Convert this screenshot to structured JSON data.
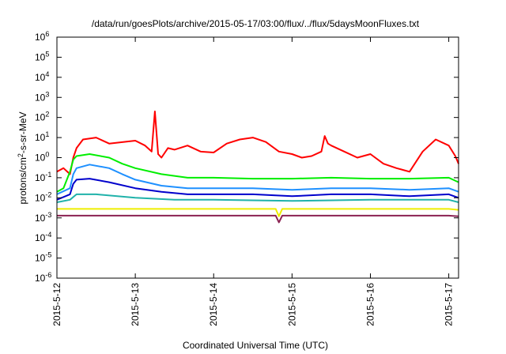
{
  "chart_data": {
    "type": "line",
    "title": "/data/run/goesPlots/archive/2015-05-17/03:00/flux/../flux/5daysMoonFluxes.txt",
    "xlabel": "Coordinated Universal Time (UTC)",
    "ylabel": "protons/cm2-s-sr-MeV",
    "ylabel_parts": {
      "pre": "protons/cm",
      "sup": "2",
      "post": "-s-sr-MeV"
    },
    "y_scale": "log",
    "ylim": [
      "1e-6",
      "1e6"
    ],
    "y_ticks": [
      {
        "value": "1e-6",
        "base": "10",
        "exp": "-6"
      },
      {
        "value": "1e-5",
        "base": "10",
        "exp": "-5"
      },
      {
        "value": "1e-4",
        "base": "10",
        "exp": "-4"
      },
      {
        "value": "1e-3",
        "base": "10",
        "exp": "-3"
      },
      {
        "value": "1e-2",
        "base": "10",
        "exp": "-2"
      },
      {
        "value": "1e-1",
        "base": "10",
        "exp": "-1"
      },
      {
        "value": "1e0",
        "base": "10",
        "exp": "0"
      },
      {
        "value": "1e1",
        "base": "10",
        "exp": "1"
      },
      {
        "value": "1e2",
        "base": "10",
        "exp": "2"
      },
      {
        "value": "1e3",
        "base": "10",
        "exp": "3"
      },
      {
        "value": "1e4",
        "base": "10",
        "exp": "4"
      },
      {
        "value": "1e5",
        "base": "10",
        "exp": "5"
      },
      {
        "value": "1e6",
        "base": "10",
        "exp": "6"
      }
    ],
    "xlim": [
      "2015-05-12T00:00",
      "2015-05-17T03:00"
    ],
    "x_ticks": [
      "2015-5-12",
      "2015-5-13",
      "2015-5-14",
      "2015-5-15",
      "2015-5-16",
      "2015-5-17"
    ],
    "grid": false,
    "legend": "none",
    "series": [
      {
        "color": "#ff0000",
        "x": [
          "2015-05-12T00:00",
          "2015-05-12T02:00",
          "2015-05-12T04:00",
          "2015-05-12T05:00",
          "2015-05-12T06:00",
          "2015-05-12T08:00",
          "2015-05-12T12:00",
          "2015-05-12T16:00",
          "2015-05-13T00:00",
          "2015-05-13T03:00",
          "2015-05-13T05:00",
          "2015-05-13T06:00",
          "2015-05-13T07:00",
          "2015-05-13T08:00",
          "2015-05-13T10:00",
          "2015-05-13T12:00",
          "2015-05-13T16:00",
          "2015-05-13T20:00",
          "2015-05-14T00:00",
          "2015-05-14T04:00",
          "2015-05-14T08:00",
          "2015-05-14T12:00",
          "2015-05-14T16:00",
          "2015-05-14T20:00",
          "2015-05-15T00:00",
          "2015-05-15T03:00",
          "2015-05-15T06:00",
          "2015-05-15T09:00",
          "2015-05-15T10:00",
          "2015-05-15T11:00",
          "2015-05-15T12:00",
          "2015-05-15T16:00",
          "2015-05-15T20:00",
          "2015-05-16T00:00",
          "2015-05-16T04:00",
          "2015-05-16T08:00",
          "2015-05-16T12:00",
          "2015-05-16T16:00",
          "2015-05-16T20:00",
          "2015-05-17T00:00",
          "2015-05-17T02:00",
          "2015-05-17T03:00"
        ],
        "y": [
          "0.2",
          "0.3",
          "0.15",
          "1",
          "3",
          "8",
          "10",
          "5",
          "7",
          "4",
          "2",
          "200",
          "1.5",
          "1",
          "3",
          "2.5",
          "4",
          "2",
          "1.8",
          "5",
          "8",
          "10",
          "6",
          "2",
          "1.5",
          "1",
          "1.2",
          "2",
          "12",
          "5",
          "4",
          "2",
          "1",
          "1.5",
          "0.5",
          "0.3",
          "0.2",
          "2",
          "8",
          "4",
          "1.2",
          "0.5"
        ]
      },
      {
        "color": "#00ee00",
        "x": [
          "2015-05-12T00:00",
          "2015-05-12T02:00",
          "2015-05-12T04:00",
          "2015-05-12T05:00",
          "2015-05-12T06:00",
          "2015-05-12T10:00",
          "2015-05-12T16:00",
          "2015-05-12T20:00",
          "2015-05-13T00:00",
          "2015-05-13T08:00",
          "2015-05-13T16:00",
          "2015-05-14T00:00",
          "2015-05-14T12:00",
          "2015-05-15T00:00",
          "2015-05-15T12:00",
          "2015-05-16T00:00",
          "2015-05-16T12:00",
          "2015-05-17T00:00",
          "2015-05-17T03:00"
        ],
        "y": [
          "0.02",
          "0.03",
          "0.2",
          "0.8",
          "1.2",
          "1.5",
          "1",
          "0.5",
          "0.3",
          "0.15",
          "0.1",
          "0.1",
          "0.09",
          "0.09",
          "0.1",
          "0.09",
          "0.09",
          "0.1",
          "0.06"
        ]
      },
      {
        "color": "#1e90ff",
        "x": [
          "2015-05-12T00:00",
          "2015-05-12T04:00",
          "2015-05-12T05:00",
          "2015-05-12T06:00",
          "2015-05-12T10:00",
          "2015-05-12T16:00",
          "2015-05-12T20:00",
          "2015-05-13T00:00",
          "2015-05-13T08:00",
          "2015-05-13T16:00",
          "2015-05-14T00:00",
          "2015-05-14T12:00",
          "2015-05-15T00:00",
          "2015-05-15T12:00",
          "2015-05-16T00:00",
          "2015-05-16T12:00",
          "2015-05-17T00:00",
          "2015-05-17T03:00"
        ],
        "y": [
          "0.015",
          "0.03",
          "0.15",
          "0.3",
          "0.45",
          "0.3",
          "0.15",
          "0.08",
          "0.04",
          "0.03",
          "0.03",
          "0.03",
          "0.025",
          "0.03",
          "0.03",
          "0.025",
          "0.03",
          "0.02"
        ]
      },
      {
        "color": "#0000cc",
        "x": [
          "2015-05-12T00:00",
          "2015-05-12T04:00",
          "2015-05-12T05:00",
          "2015-05-12T06:00",
          "2015-05-12T10:00",
          "2015-05-12T16:00",
          "2015-05-13T00:00",
          "2015-05-13T08:00",
          "2015-05-13T16:00",
          "2015-05-14T00:00",
          "2015-05-14T12:00",
          "2015-05-15T00:00",
          "2015-05-15T12:00",
          "2015-05-16T00:00",
          "2015-05-16T12:00",
          "2015-05-17T00:00",
          "2015-05-17T03:00"
        ],
        "y": [
          "0.008",
          "0.015",
          "0.05",
          "0.08",
          "0.09",
          "0.06",
          "0.03",
          "0.02",
          "0.015",
          "0.015",
          "0.015",
          "0.012",
          "0.015",
          "0.015",
          "0.012",
          "0.015",
          "0.01"
        ]
      },
      {
        "color": "#20b2aa",
        "x": [
          "2015-05-12T00:00",
          "2015-05-12T04:00",
          "2015-05-12T06:00",
          "2015-05-12T12:00",
          "2015-05-13T00:00",
          "2015-05-13T12:00",
          "2015-05-14T00:00",
          "2015-05-15T00:00",
          "2015-05-16T00:00",
          "2015-05-17T00:00",
          "2015-05-17T03:00"
        ],
        "y": [
          "0.006",
          "0.008",
          "0.015",
          "0.015",
          "0.01",
          "0.008",
          "0.008",
          "0.007",
          "0.008",
          "0.008",
          "0.006"
        ]
      },
      {
        "color": "#eeee00",
        "x": [
          "2015-05-12T00:00",
          "2015-05-13T00:00",
          "2015-05-14T00:00",
          "2015-05-14T19:00",
          "2015-05-14T20:00",
          "2015-05-14T21:00",
          "2015-05-15T00:00",
          "2015-05-16T00:00",
          "2015-05-17T00:00",
          "2015-05-17T03:00"
        ],
        "y": [
          "0.0028",
          "0.0028",
          "0.0028",
          "0.0028",
          "0.0012",
          "0.0028",
          "0.0028",
          "0.0028",
          "0.0028",
          "0.0025"
        ]
      },
      {
        "color": "#8b2252",
        "x": [
          "2015-05-12T00:00",
          "2015-05-13T00:00",
          "2015-05-14T00:00",
          "2015-05-14T19:00",
          "2015-05-14T20:00",
          "2015-05-14T21:00",
          "2015-05-15T00:00",
          "2015-05-16T00:00",
          "2015-05-17T00:00",
          "2015-05-17T03:00"
        ],
        "y": [
          "0.0013",
          "0.0013",
          "0.0013",
          "0.0013",
          "0.0006",
          "0.0013",
          "0.0013",
          "0.0013",
          "0.0013",
          "0.0012"
        ]
      }
    ]
  }
}
